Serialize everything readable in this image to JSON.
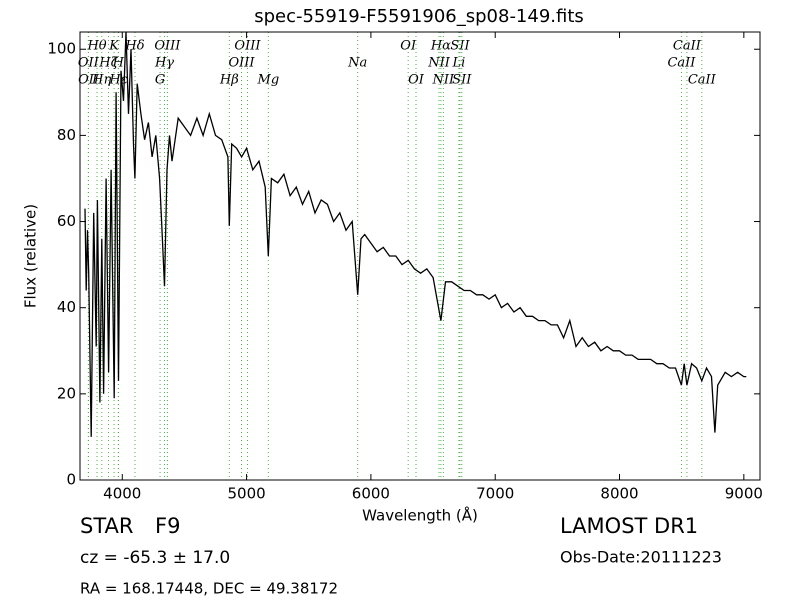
{
  "chart_data": {
    "type": "line",
    "title": "spec-55919-F5591906_sp08-149.fits",
    "x_label": "Wavelength (Å)",
    "y_label": "Flux (relative)",
    "xlim": [
      3660,
      9130
    ],
    "ylim": [
      0,
      104
    ],
    "xticks": [
      4000,
      5000,
      6000,
      7000,
      8000,
      9000
    ],
    "yticks": [
      0,
      20,
      40,
      60,
      80,
      100
    ],
    "line_color": "#000000",
    "marker_color": "#4daf4a",
    "x": [
      3700,
      3710,
      3720,
      3730,
      3750,
      3770,
      3790,
      3800,
      3820,
      3835,
      3850,
      3870,
      3890,
      3910,
      3935,
      3950,
      3970,
      3990,
      4010,
      4030,
      4050,
      4070,
      4090,
      4102,
      4120,
      4150,
      4180,
      4210,
      4240,
      4270,
      4300,
      4320,
      4340,
      4360,
      4380,
      4400,
      4450,
      4500,
      4550,
      4600,
      4650,
      4700,
      4750,
      4800,
      4850,
      4861,
      4880,
      4920,
      4960,
      5000,
      5050,
      5100,
      5150,
      5175,
      5200,
      5250,
      5300,
      5350,
      5400,
      5450,
      5500,
      5550,
      5600,
      5650,
      5700,
      5750,
      5800,
      5850,
      5894,
      5920,
      5950,
      6000,
      6050,
      6100,
      6150,
      6200,
      6250,
      6300,
      6350,
      6400,
      6450,
      6500,
      6563,
      6600,
      6650,
      6700,
      6750,
      6800,
      6850,
      6900,
      6950,
      7000,
      7050,
      7100,
      7150,
      7200,
      7250,
      7300,
      7350,
      7400,
      7450,
      7500,
      7550,
      7600,
      7650,
      7700,
      7750,
      7800,
      7850,
      7900,
      7950,
      8000,
      8050,
      8100,
      8150,
      8200,
      8250,
      8300,
      8350,
      8400,
      8450,
      8498,
      8520,
      8542,
      8580,
      8620,
      8662,
      8700,
      8740,
      8767,
      8790,
      8850,
      8900,
      8950,
      9000,
      9020
    ],
    "values": [
      63,
      44,
      58,
      48,
      10,
      62,
      31,
      65,
      18,
      56,
      20,
      70,
      25,
      72,
      19,
      90,
      23,
      95,
      88,
      104,
      85,
      100,
      78,
      70,
      92,
      85,
      79,
      83,
      75,
      80,
      70,
      58,
      45,
      72,
      80,
      74,
      84,
      82,
      80,
      84,
      80,
      85,
      80,
      79,
      75,
      59,
      78,
      77,
      75,
      77,
      72,
      74,
      68,
      52,
      70,
      69,
      71,
      66,
      68,
      64,
      67,
      62,
      65,
      64,
      60,
      62,
      58,
      60,
      43,
      56,
      57,
      55,
      53,
      54,
      52,
      52,
      50,
      51,
      49,
      48,
      49,
      47,
      37,
      46,
      46,
      45,
      44,
      44,
      43,
      43,
      42,
      43,
      40,
      41,
      39,
      40,
      38,
      38,
      37,
      37,
      36,
      36,
      33,
      37,
      31,
      33,
      31,
      32,
      30,
      31,
      30,
      30,
      29,
      29,
      28,
      28,
      28,
      27,
      27,
      26,
      26,
      22,
      27,
      22,
      27,
      26,
      23,
      26,
      24,
      11,
      22,
      25,
      24,
      25,
      24,
      24
    ],
    "line_rows": [
      [
        {
          "label": "Hθ",
          "wavelength": 3797
        },
        {
          "label": "K",
          "wavelength": 3934
        },
        {
          "label": "Hδ",
          "wavelength": 4102
        },
        {
          "label": "OIII",
          "wavelength": 4363
        },
        {
          "label": "OIII",
          "wavelength": 5007
        },
        {
          "label": "OI",
          "wavelength": 6300
        },
        {
          "label": "Hα",
          "wavelength": 6563
        },
        {
          "label": "SII",
          "wavelength": 6717
        },
        {
          "label": "CaII",
          "wavelength": 8542
        }
      ],
      [
        {
          "label": "OII",
          "wavelength": 3727
        },
        {
          "label": "Hζ",
          "wavelength": 3889
        },
        {
          "label": "H",
          "wavelength": 3968
        },
        {
          "label": "Hγ",
          "wavelength": 4340
        },
        {
          "label": "OIII",
          "wavelength": 4959
        },
        {
          "label": "Na",
          "wavelength": 5894
        },
        {
          "label": "NII",
          "wavelength": 6548
        },
        {
          "label": "Li",
          "wavelength": 6708
        },
        {
          "label": "CaII",
          "wavelength": 8498
        }
      ],
      [
        {
          "label": "OII",
          "wavelength": 3729
        },
        {
          "label": "Hη",
          "wavelength": 3835
        },
        {
          "label": "Hε",
          "wavelength": 3970
        },
        {
          "label": "G",
          "wavelength": 4304
        },
        {
          "label": "Hβ",
          "wavelength": 4861
        },
        {
          "label": "Mg",
          "wavelength": 5175
        },
        {
          "label": "OI",
          "wavelength": 6363
        },
        {
          "label": "NII",
          "wavelength": 6583
        },
        {
          "label": "SII",
          "wavelength": 6731
        },
        {
          "label": "CaII",
          "wavelength": 8662
        }
      ]
    ]
  },
  "info": {
    "class": "STAR",
    "subclass": "F9",
    "survey": "LAMOST DR1",
    "cz": "cz = -65.3 ± 17.0",
    "obs_date": "Obs-Date:20111223",
    "coords": "RA = 168.17448, DEC = 49.38172"
  }
}
